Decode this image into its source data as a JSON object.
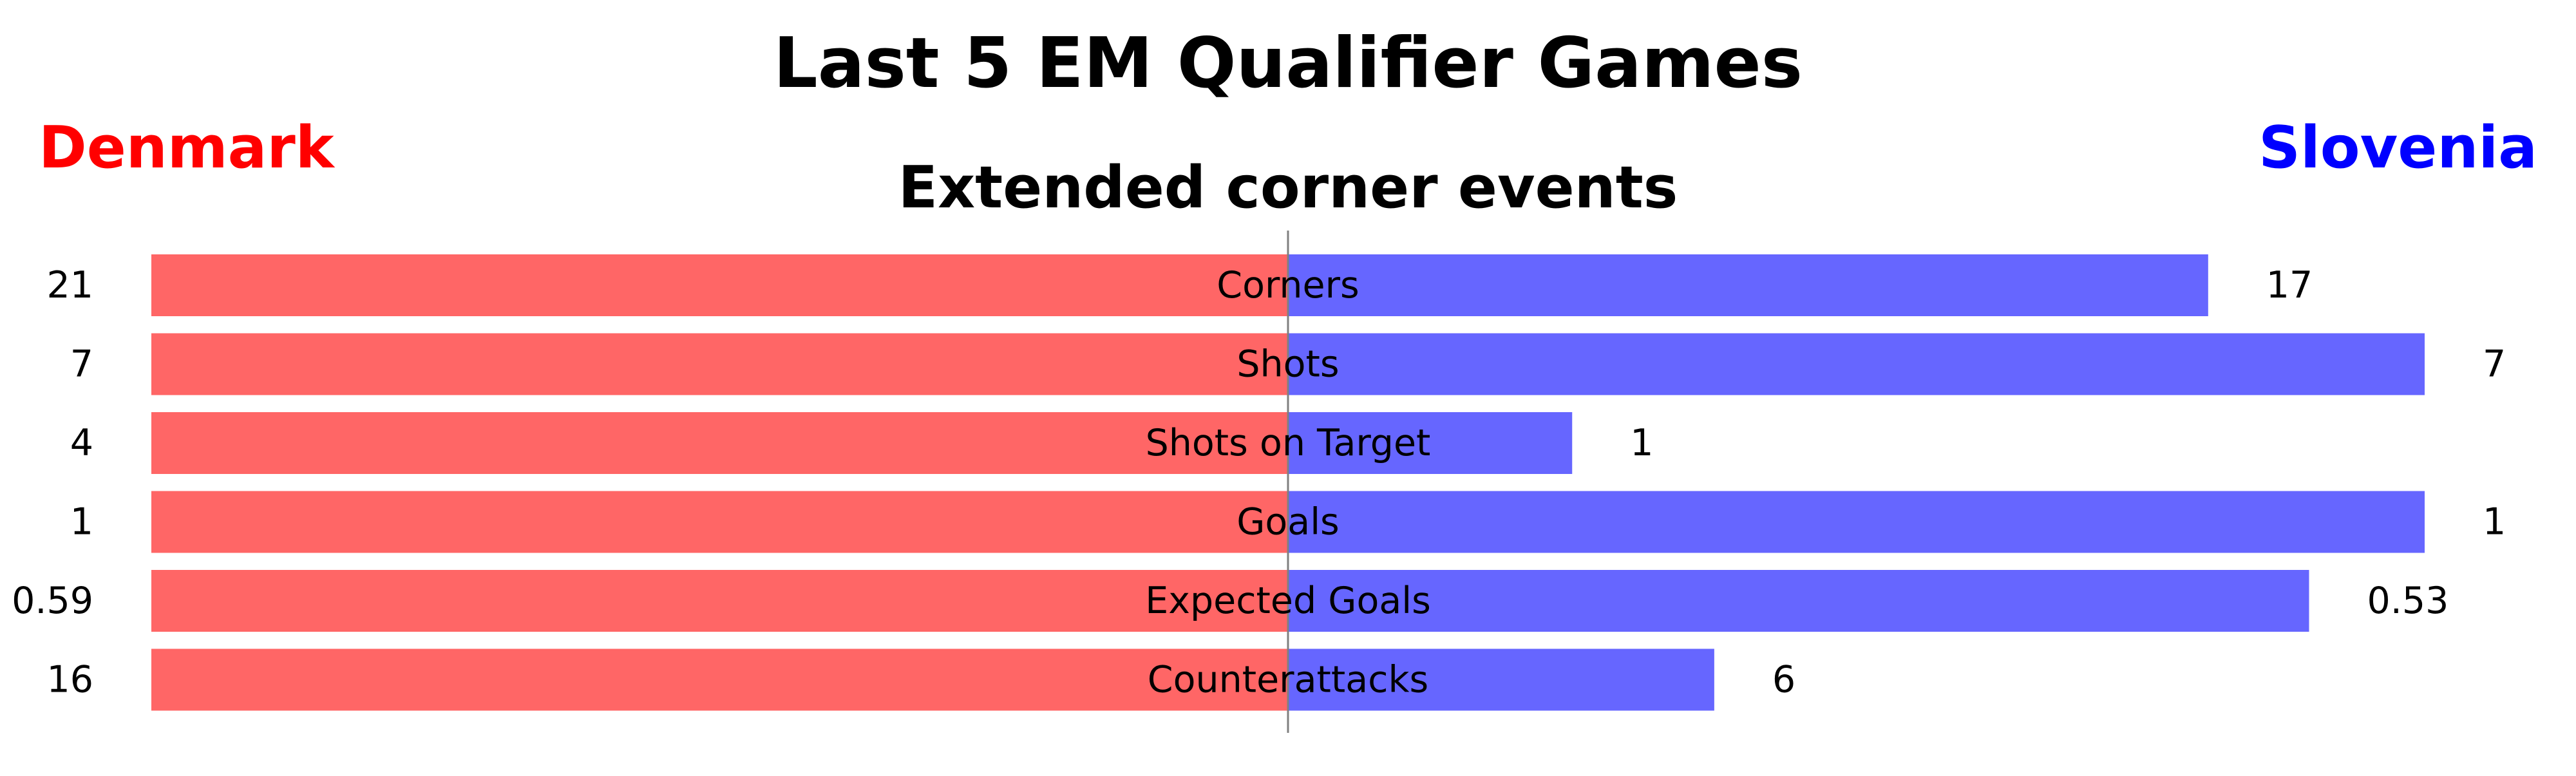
{
  "chart_data": {
    "type": "bar",
    "title": "Last 5 EM Qualifier Games",
    "subtitle": "Extended corner events",
    "teams": {
      "left": {
        "name": "Denmark",
        "color": "#ff0000",
        "bar_color": "#ff6666"
      },
      "right": {
        "name": "Slovenia",
        "color": "#0000ff",
        "bar_color": "#6666ff"
      }
    },
    "categories": [
      "Corners",
      "Shots",
      "Shots on Target",
      "Goals",
      "Expected Goals",
      "Counterattacks"
    ],
    "series": [
      {
        "name": "Denmark",
        "values": [
          21,
          7,
          4,
          1,
          0.59,
          16
        ],
        "labels": [
          "21",
          "7",
          "4",
          "1",
          "0.59",
          "16"
        ]
      },
      {
        "name": "Slovenia",
        "values": [
          17,
          7,
          1,
          1,
          0.53,
          6
        ],
        "labels": [
          "17",
          "7",
          "1",
          "1",
          "0.53",
          "6"
        ]
      }
    ],
    "normalization": "per-category share of max of both teams",
    "grid": false,
    "center_line": true
  }
}
